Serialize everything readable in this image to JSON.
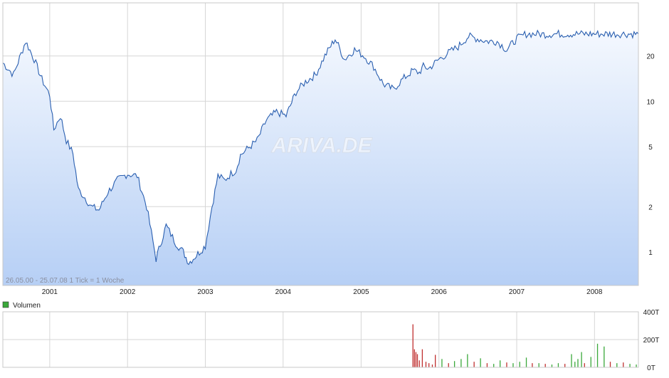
{
  "chart_data": [
    {
      "type": "area",
      "panel": "price",
      "yscale": "log",
      "ylim": [
        0.6,
        45
      ],
      "x_tick_labels": [
        "2001",
        "2002",
        "2003",
        "2004",
        "2005",
        "2006",
        "2007",
        "2008"
      ],
      "y_tick_labels": [
        "1",
        "2",
        "5",
        "10",
        "20"
      ],
      "y_ticks": [
        1,
        2,
        5,
        10,
        20
      ],
      "period_label": "26.05.00 - 25.07.08",
      "tick_label": "1 Tick = 1 Woche",
      "watermark": "ARIVA.DE",
      "grid": true,
      "line_color": "#2a5fb0",
      "fill_top_color": "#f4f8fe",
      "fill_bottom_color": "#b6cff5",
      "x": [
        "2000-05-26",
        "2000-07-15",
        "2000-09-10",
        "2000-10-20",
        "2000-11-25",
        "2001-01-01",
        "2001-01-20",
        "2001-02-20",
        "2001-03-20",
        "2001-04-20",
        "2001-05-15",
        "2001-06-15",
        "2001-07-15",
        "2001-08-20",
        "2001-10-01",
        "2001-11-15",
        "2002-01-01",
        "2002-02-15",
        "2002-04-01",
        "2002-05-15",
        "2002-07-01",
        "2002-08-15",
        "2002-09-20",
        "2002-10-15",
        "2002-11-20",
        "2003-01-01",
        "2003-02-01",
        "2003-03-01",
        "2003-04-01",
        "2003-05-01",
        "2003-05-25",
        "2003-06-15",
        "2003-07-15",
        "2003-09-01",
        "2003-10-15",
        "2003-12-01",
        "2004-01-15",
        "2004-03-01",
        "2004-04-15",
        "2004-06-01",
        "2004-07-15",
        "2004-09-01",
        "2004-10-15",
        "2004-12-01",
        "2005-01-15",
        "2005-03-01",
        "2005-04-15",
        "2005-06-01",
        "2005-07-15",
        "2005-09-01",
        "2005-10-01",
        "2005-10-20",
        "2005-11-15",
        "2006-01-01",
        "2006-02-15",
        "2006-04-01",
        "2006-05-20",
        "2006-07-01",
        "2006-08-15",
        "2006-10-01",
        "2006-11-15",
        "2007-01-01",
        "2007-02-15",
        "2007-04-01",
        "2007-05-15",
        "2007-07-01",
        "2007-08-15",
        "2007-10-01",
        "2007-11-15",
        "2008-01-01",
        "2008-02-15",
        "2008-04-01",
        "2008-05-01",
        "2008-06-01",
        "2008-07-25"
      ],
      "values": [
        18,
        15,
        25,
        19,
        14,
        11,
        6.5,
        8,
        5.5,
        4.5,
        2.6,
        2.3,
        2.0,
        1.9,
        2.5,
        3.0,
        3.3,
        3.2,
        2.0,
        0.9,
        1.5,
        1.15,
        1.0,
        0.85,
        0.95,
        1.1,
        2.0,
        3.2,
        3.0,
        3.3,
        3.5,
        4.4,
        4.8,
        5.5,
        7.5,
        8.5,
        8.0,
        11.5,
        13.5,
        15.0,
        20.0,
        26.0,
        19.0,
        22.0,
        20.0,
        17.0,
        13.0,
        12.0,
        14.0,
        16.0,
        15.5,
        17.0,
        16.5,
        19.0,
        21.0,
        23.0,
        27.0,
        26.0,
        25.0,
        25.0,
        22.0,
        26.0,
        28.0,
        28.0,
        27.8,
        28,
        28,
        28,
        28,
        28,
        28,
        28,
        28,
        28,
        28
      ]
    },
    {
      "type": "bar",
      "panel": "volume",
      "legend": "Volumen",
      "ylim": [
        0,
        400
      ],
      "y_tick_labels": [
        "400T",
        "200T",
        "0T"
      ],
      "y_ticks": [
        400,
        200,
        0
      ],
      "x": [
        "2005-09-01",
        "2005-09-08",
        "2005-09-15",
        "2005-09-22",
        "2005-10-01",
        "2005-10-15",
        "2005-11-01",
        "2005-11-15",
        "2005-12-01",
        "2005-12-15",
        "2006-01-15",
        "2006-02-15",
        "2006-03-15",
        "2006-04-15",
        "2006-05-15",
        "2006-06-15",
        "2006-07-15",
        "2006-08-15",
        "2006-09-15",
        "2006-10-15",
        "2006-11-15",
        "2006-12-15",
        "2007-01-15",
        "2007-02-15",
        "2007-03-15",
        "2007-04-15",
        "2007-05-15",
        "2007-06-15",
        "2007-07-15",
        "2007-08-15",
        "2007-09-15",
        "2007-10-01",
        "2007-10-15",
        "2007-11-01",
        "2007-11-15",
        "2007-12-15",
        "2008-01-15",
        "2008-02-15",
        "2008-03-15",
        "2008-04-15",
        "2008-05-15",
        "2008-06-15",
        "2008-07-15"
      ],
      "values": [
        310,
        130,
        110,
        95,
        50,
        130,
        40,
        30,
        20,
        90,
        60,
        30,
        45,
        60,
        95,
        40,
        65,
        30,
        25,
        50,
        35,
        30,
        40,
        70,
        30,
        30,
        25,
        20,
        30,
        25,
        95,
        40,
        60,
        110,
        30,
        75,
        170,
        150,
        40,
        30,
        35,
        25,
        20
      ],
      "colors": [
        "#c03030",
        "#c03030",
        "#c03030",
        "#c03030",
        "#c03030",
        "#c03030",
        "#c03030",
        "#c03030",
        "#c03030",
        "#c03030",
        "#3aa83a",
        "#c03030",
        "#3aa83a",
        "#3aa83a",
        "#3aa83a",
        "#c03030",
        "#3aa83a",
        "#c03030",
        "#3aa83a",
        "#3aa83a",
        "#c03030",
        "#3aa83a",
        "#3aa83a",
        "#3aa83a",
        "#c03030",
        "#3aa83a",
        "#c03030",
        "#3aa83a",
        "#3aa83a",
        "#c03030",
        "#3aa83a",
        "#3aa83a",
        "#3aa83a",
        "#3aa83a",
        "#c03030",
        "#3aa83a",
        "#3aa83a",
        "#3aa83a",
        "#c03030",
        "#3aa83a",
        "#c03030",
        "#3aa83a",
        "#3aa83a"
      ],
      "legend_color": "#3aa83a"
    }
  ]
}
